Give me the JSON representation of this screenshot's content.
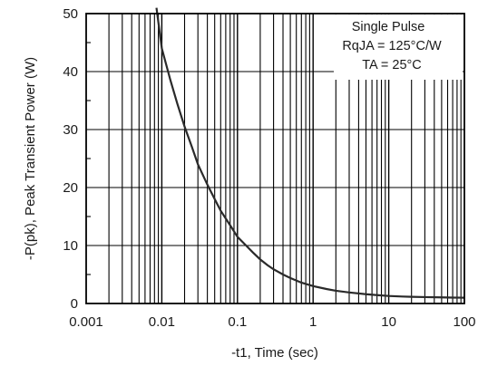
{
  "chart_data": {
    "type": "line",
    "title": "",
    "xlabel": "-t1, Time (sec)",
    "ylabel": "-P(pk), Peak Transient Power (W)",
    "x_scale": "log",
    "xlim": [
      0.001,
      100
    ],
    "ylim": [
      0,
      50
    ],
    "grid": true,
    "x_tick_labels": [
      "0.001",
      "0.01",
      "0.1",
      "1",
      "10",
      "100"
    ],
    "y_tick_labels": [
      "0",
      "10",
      "20",
      "30",
      "40",
      "50"
    ],
    "annotation": {
      "line1": "Single Pulse",
      "line2": "RqJA = 125°C/W",
      "line3": "TA = 25°C"
    },
    "series": [
      {
        "x": [
          0.0085,
          0.01,
          0.013,
          0.016,
          0.02,
          0.025,
          0.03,
          0.04,
          0.05,
          0.06,
          0.08,
          0.1,
          0.13,
          0.16,
          0.2,
          0.25,
          0.3,
          0.4,
          0.5,
          0.7,
          1,
          1.5,
          2,
          3,
          5,
          7,
          10,
          15,
          20,
          30,
          50,
          70,
          100
        ],
        "values": [
          51.0,
          44.0,
          38.5,
          34.5,
          30.5,
          27.0,
          24.0,
          20.5,
          18.0,
          16.0,
          13.5,
          11.5,
          10.0,
          8.8,
          7.6,
          6.6,
          5.9,
          5.0,
          4.4,
          3.6,
          3.0,
          2.5,
          2.2,
          1.9,
          1.6,
          1.45,
          1.3,
          1.2,
          1.15,
          1.1,
          1.05,
          1.02,
          1.0
        ]
      }
    ]
  }
}
